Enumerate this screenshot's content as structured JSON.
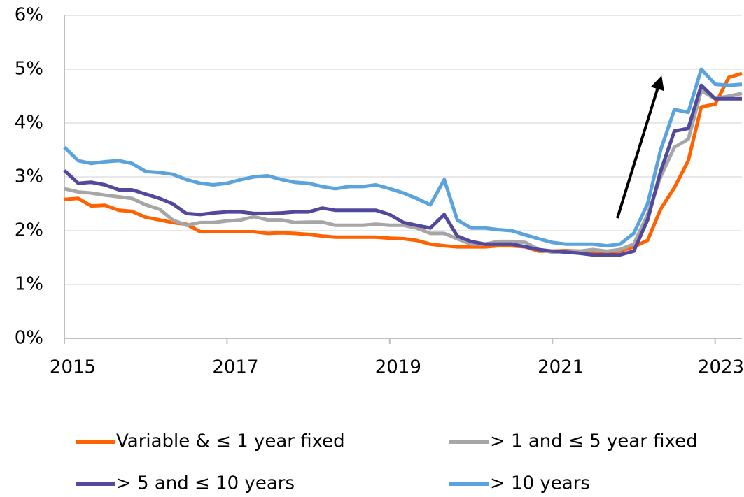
{
  "chart_data": {
    "type": "line",
    "x": [
      2015,
      2015.17,
      2015.33,
      2015.5,
      2015.67,
      2015.83,
      2016,
      2016.17,
      2016.33,
      2016.5,
      2016.67,
      2016.83,
      2017,
      2017.17,
      2017.33,
      2017.5,
      2017.67,
      2017.83,
      2018,
      2018.17,
      2018.33,
      2018.5,
      2018.67,
      2018.83,
      2019,
      2019.17,
      2019.33,
      2019.5,
      2019.67,
      2019.83,
      2020,
      2020.17,
      2020.33,
      2020.5,
      2020.67,
      2020.83,
      2021,
      2021.17,
      2021.33,
      2021.5,
      2021.67,
      2021.83,
      2022,
      2022.17,
      2022.33,
      2022.5,
      2022.67,
      2022.83,
      2023,
      2023.17,
      2023.33
    ],
    "series": [
      {
        "name": "Variable & ≤ 1 year fixed",
        "color": "#ff6200",
        "values": [
          2.58,
          2.6,
          2.46,
          2.47,
          2.38,
          2.36,
          2.25,
          2.2,
          2.15,
          2.12,
          1.98,
          1.98,
          1.98,
          1.98,
          1.98,
          1.95,
          1.96,
          1.95,
          1.93,
          1.9,
          1.88,
          1.88,
          1.88,
          1.88,
          1.86,
          1.85,
          1.82,
          1.75,
          1.72,
          1.7,
          1.7,
          1.7,
          1.72,
          1.72,
          1.7,
          1.62,
          1.62,
          1.63,
          1.62,
          1.6,
          1.6,
          1.62,
          1.7,
          1.82,
          2.4,
          2.8,
          3.3,
          4.3,
          4.35,
          4.85,
          4.92
        ]
      },
      {
        "name": "> 1 and ≤ 5 year fixed",
        "color": "#a6a6a6",
        "values": [
          2.78,
          2.72,
          2.7,
          2.66,
          2.63,
          2.6,
          2.48,
          2.4,
          2.2,
          2.1,
          2.15,
          2.15,
          2.18,
          2.2,
          2.26,
          2.2,
          2.2,
          2.15,
          2.16,
          2.16,
          2.1,
          2.1,
          2.1,
          2.12,
          2.1,
          2.1,
          2.05,
          1.95,
          1.95,
          1.85,
          1.75,
          1.75,
          1.8,
          1.8,
          1.78,
          1.65,
          1.6,
          1.62,
          1.62,
          1.65,
          1.62,
          1.65,
          1.75,
          2.3,
          3.0,
          3.55,
          3.7,
          4.6,
          4.45,
          4.5,
          4.55
        ]
      },
      {
        "name": "> 5 and ≤ 10 years",
        "color": "#52489c",
        "values": [
          3.12,
          2.88,
          2.9,
          2.85,
          2.76,
          2.76,
          2.68,
          2.6,
          2.5,
          2.32,
          2.3,
          2.33,
          2.35,
          2.35,
          2.32,
          2.32,
          2.33,
          2.35,
          2.35,
          2.42,
          2.38,
          2.38,
          2.38,
          2.38,
          2.3,
          2.15,
          2.1,
          2.05,
          2.3,
          1.9,
          1.8,
          1.75,
          1.75,
          1.75,
          1.7,
          1.65,
          1.62,
          1.6,
          1.58,
          1.55,
          1.55,
          1.55,
          1.62,
          2.2,
          3.1,
          3.85,
          3.9,
          4.7,
          4.45,
          4.45,
          4.45
        ]
      },
      {
        "name": "> 10 years",
        "color": "#5ba3dc",
        "values": [
          3.55,
          3.3,
          3.25,
          3.28,
          3.3,
          3.25,
          3.1,
          3.08,
          3.05,
          2.95,
          2.88,
          2.85,
          2.88,
          2.95,
          3.0,
          3.02,
          2.95,
          2.9,
          2.88,
          2.82,
          2.78,
          2.82,
          2.82,
          2.85,
          2.78,
          2.7,
          2.6,
          2.48,
          2.95,
          2.2,
          2.05,
          2.05,
          2.02,
          2.0,
          1.92,
          1.85,
          1.78,
          1.75,
          1.75,
          1.75,
          1.72,
          1.75,
          1.95,
          2.5,
          3.5,
          4.25,
          4.2,
          5.0,
          4.72,
          4.7,
          4.72
        ]
      }
    ],
    "xlim": [
      2015,
      2023.33
    ],
    "xticks": [
      2015,
      2017,
      2019,
      2021,
      2023
    ],
    "ylim": [
      0,
      6
    ],
    "yticks": [
      {
        "value": 0,
        "label": "0%"
      },
      {
        "value": 1,
        "label": "1%"
      },
      {
        "value": 2,
        "label": "2%"
      },
      {
        "value": 3,
        "label": "3%"
      },
      {
        "value": 4,
        "label": "4%"
      },
      {
        "value": 5,
        "label": "5%"
      },
      {
        "value": 6,
        "label": "6%"
      }
    ],
    "grid": true
  }
}
